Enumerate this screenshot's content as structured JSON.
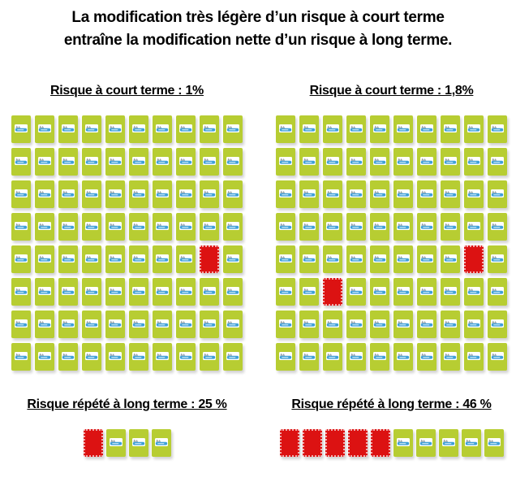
{
  "title": {
    "line1": "La modification très légère d’un risque à court terme",
    "line2": "entraîne la modification nette d’un risque à long terme."
  },
  "colors": {
    "green": "#b7cd32",
    "red": "#dc1212",
    "logo-blue": "#3fa0d8",
    "logo-gray": "#97a0a6",
    "text": "#000000",
    "background": "#ffffff"
  },
  "chart_data": {
    "type": "icon-array",
    "title": "La modification très légère d’un risque à court terme entraîne la modification nette d’un risque à long terme.",
    "panels": [
      {
        "id": "short-term-1pct",
        "label": "Risque à court terme : 1%",
        "value_pct": 1,
        "rows": 8,
        "cols": 10,
        "total_cells": 80,
        "red_count": 1,
        "green_count": 79,
        "red_cells": [
          [
            4,
            8
          ]
        ]
      },
      {
        "id": "short-term-1-8pct",
        "label": "Risque à court terme : 1,8%",
        "value_pct": 1.8,
        "rows": 8,
        "cols": 10,
        "total_cells": 80,
        "red_count": 2,
        "green_count": 78,
        "red_cells": [
          [
            4,
            8
          ],
          [
            5,
            2
          ]
        ]
      },
      {
        "id": "long-term-25pct",
        "label": "Risque répété à long terme : 25 %",
        "value_pct": 25,
        "rows": 1,
        "cols": 4,
        "total_cells": 4,
        "red_count": 1,
        "green_count": 3,
        "red_cells": [
          [
            0,
            0
          ]
        ]
      },
      {
        "id": "long-term-46pct",
        "label": "Risque répété à long terme : 46 %",
        "value_pct": 46,
        "rows": 1,
        "cols": 10,
        "total_cells": 10,
        "red_count": 5,
        "green_count": 5,
        "red_cells": [
          [
            0,
            0
          ],
          [
            0,
            1
          ],
          [
            0,
            2
          ],
          [
            0,
            3
          ],
          [
            0,
            4
          ]
        ]
      }
    ]
  }
}
